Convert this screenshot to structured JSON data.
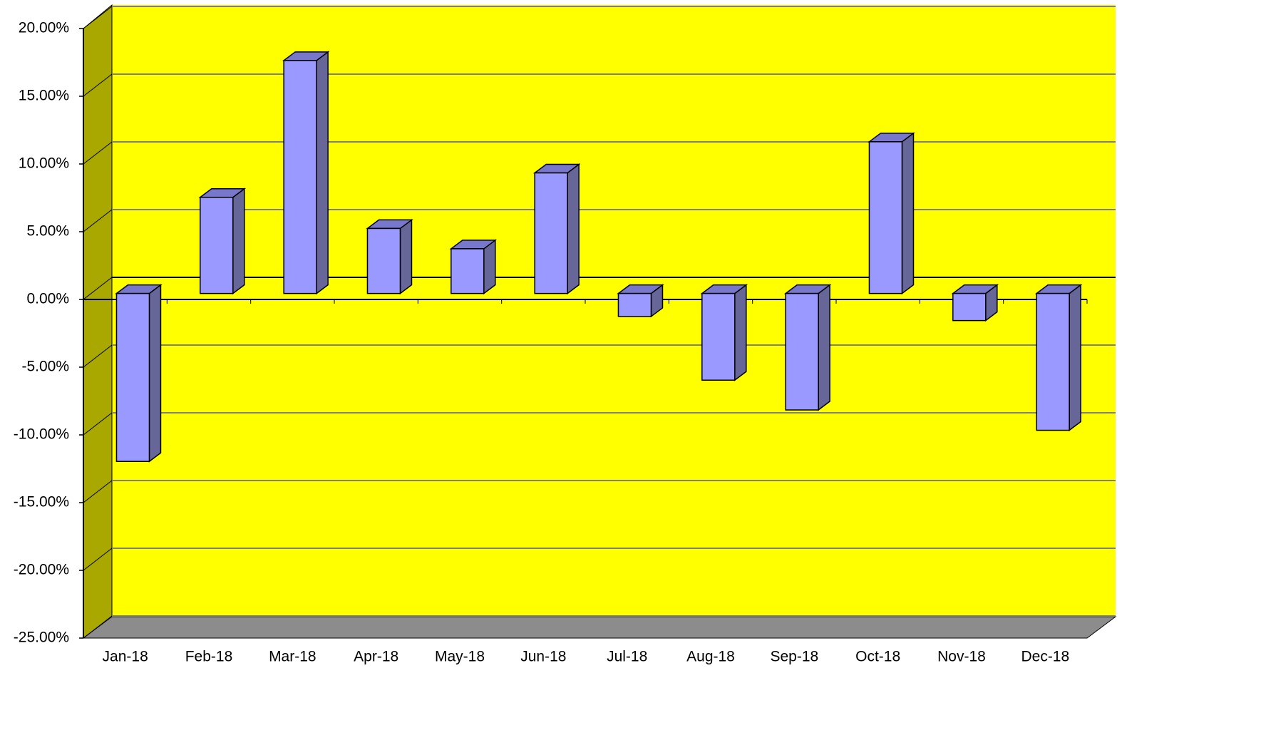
{
  "chart_data": {
    "type": "bar3d",
    "categories": [
      "Jan-18",
      "Feb-18",
      "Mar-18",
      "Apr-18",
      "May-18",
      "Jun-18",
      "Jul-18",
      "Aug-18",
      "Sep-18",
      "Oct-18",
      "Nov-18",
      "Dec-18"
    ],
    "values": [
      -12.4,
      7.1,
      17.2,
      4.8,
      3.3,
      8.9,
      -1.7,
      -6.4,
      -8.6,
      11.2,
      -2.0,
      -10.1
    ],
    "color": "#9999ff",
    "ylim": [
      -25,
      20
    ],
    "yticks": [
      {
        "value": -25,
        "label": "-25.00%"
      },
      {
        "value": -20,
        "label": "-20.00%"
      },
      {
        "value": -15,
        "label": "-15.00%"
      },
      {
        "value": -10,
        "label": "-10.00%"
      },
      {
        "value": -5,
        "label": "-5.00%"
      },
      {
        "value": 0,
        "label": "0.00%"
      },
      {
        "value": 5,
        "label": "5.00%"
      },
      {
        "value": 10,
        "label": "10.00%"
      },
      {
        "value": 15,
        "label": "15.00%"
      },
      {
        "value": 20,
        "label": "20.00%"
      }
    ],
    "grid": true
  }
}
